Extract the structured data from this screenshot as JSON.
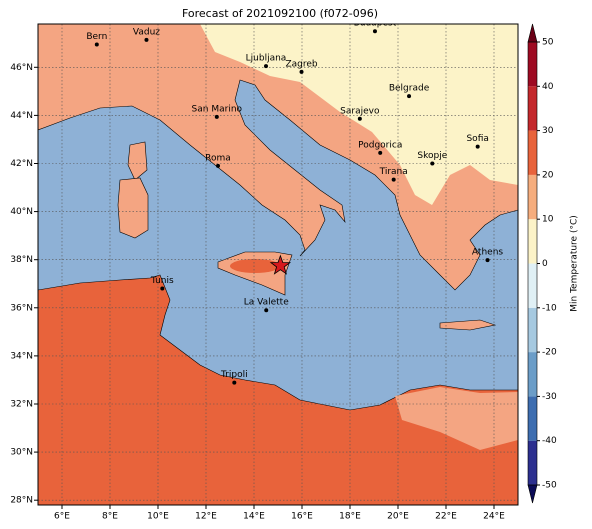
{
  "map": {
    "title": "Forecast of 2021092100 (f072-096)",
    "lonlim": [
      5,
      25
    ],
    "latlim": [
      27.8,
      47.8
    ],
    "lonticks": [
      {
        "value": 6,
        "label": "6°E"
      },
      {
        "value": 8,
        "label": "8°E"
      },
      {
        "value": 10,
        "label": "10°E"
      },
      {
        "value": 12,
        "label": "12°E"
      },
      {
        "value": 14,
        "label": "14°E"
      },
      {
        "value": 16,
        "label": "16°E"
      },
      {
        "value": 18,
        "label": "18°E"
      },
      {
        "value": 20,
        "label": "20°E"
      },
      {
        "value": 22,
        "label": "22°E"
      },
      {
        "value": 24,
        "label": "24°E"
      }
    ],
    "latticks": [
      {
        "value": 28,
        "label": "28°N"
      },
      {
        "value": 30,
        "label": "30°N"
      },
      {
        "value": 32,
        "label": "32°N"
      },
      {
        "value": 34,
        "label": "34°N"
      },
      {
        "value": 36,
        "label": "36°N"
      },
      {
        "value": 38,
        "label": "38°N"
      },
      {
        "value": 40,
        "label": "40°N"
      },
      {
        "value": 42,
        "label": "42°N"
      },
      {
        "value": 44,
        "label": "44°N"
      },
      {
        "value": 46,
        "label": "46°N"
      }
    ],
    "grid": true,
    "cities": [
      {
        "name": "Bern",
        "lon": 7.45,
        "lat": 46.95
      },
      {
        "name": "Vaduz",
        "lon": 9.52,
        "lat": 47.14
      },
      {
        "name": "Budapest",
        "lon": 19.04,
        "lat": 47.5
      },
      {
        "name": "Ljubljana",
        "lon": 14.5,
        "lat": 46.05
      },
      {
        "name": "Zagreb",
        "lon": 15.98,
        "lat": 45.81
      },
      {
        "name": "Belgrade",
        "lon": 20.46,
        "lat": 44.8
      },
      {
        "name": "San Marino",
        "lon": 12.45,
        "lat": 43.94
      },
      {
        "name": "Sarajevo",
        "lon": 18.41,
        "lat": 43.86
      },
      {
        "name": "Sofia",
        "lon": 23.32,
        "lat": 42.7
      },
      {
        "name": "Podgorica",
        "lon": 19.26,
        "lat": 42.44
      },
      {
        "name": "Skopje",
        "lon": 21.43,
        "lat": 42.0
      },
      {
        "name": "Roma",
        "lon": 12.5,
        "lat": 41.9
      },
      {
        "name": "Tirana",
        "lon": 19.82,
        "lat": 41.33
      },
      {
        "name": "Athens",
        "lon": 23.73,
        "lat": 37.98
      },
      {
        "name": "Tunis",
        "lon": 10.18,
        "lat": 36.8
      },
      {
        "name": "La Valette",
        "lon": 14.51,
        "lat": 35.9
      },
      {
        "name": "Tripoli",
        "lon": 13.18,
        "lat": 32.89
      }
    ],
    "star": {
      "lon": 15.1,
      "lat": 37.75,
      "color": "#d7191c"
    },
    "colorbar": {
      "label": "Min Temperature (°C)",
      "lim": [
        -50,
        50
      ],
      "ticks": [
        -50,
        -40,
        -30,
        -20,
        -10,
        0,
        10,
        20,
        30,
        40,
        50
      ],
      "colors": [
        "#2c2f8f",
        "#3d6db0",
        "#6b9dc8",
        "#a6c9e0",
        "#e0f0f5",
        "#fcf3c8",
        "#f6ad7d",
        "#e8633b",
        "#c4282c",
        "#9e0a22"
      ],
      "under_color": "#0b0b57",
      "over_color": "#6a0016"
    }
  }
}
